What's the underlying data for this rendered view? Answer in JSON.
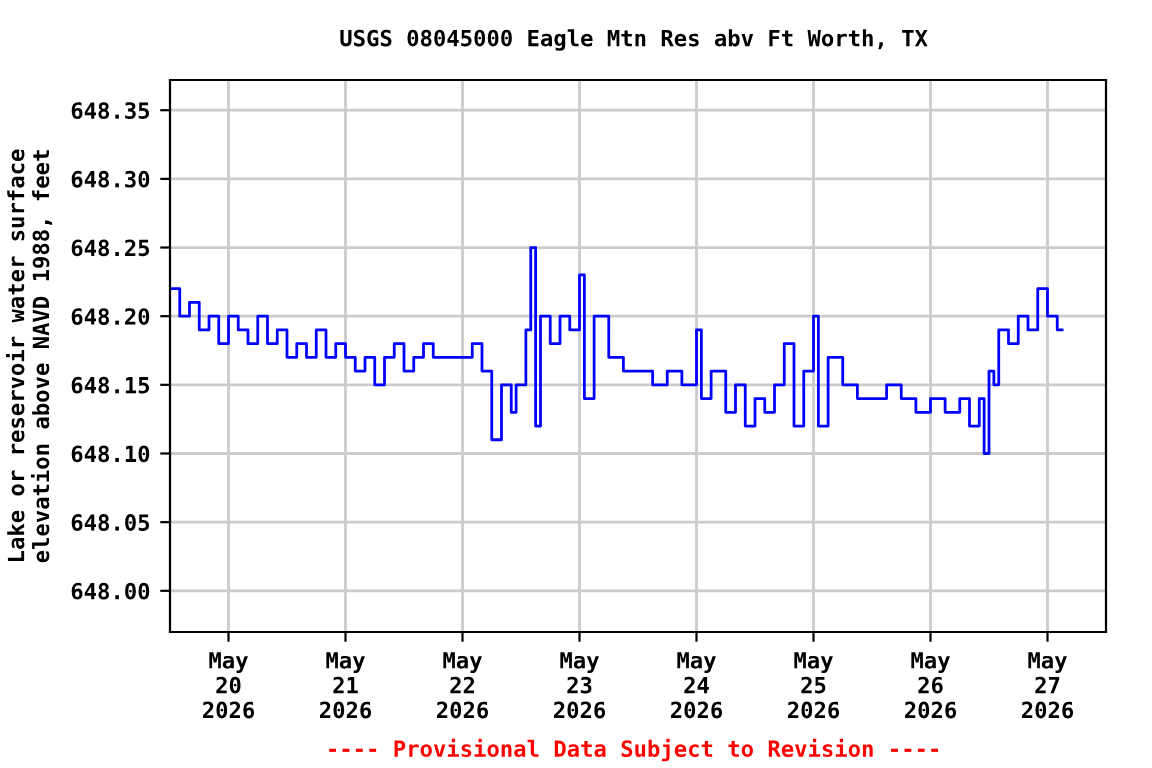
{
  "chart_data": {
    "type": "step",
    "title": "USGS 08045000 Eagle Mtn Res abv Ft Worth, TX",
    "ylabel": "Lake or reservoir water surface\nelevation above NAVD 1988, feet",
    "annotations": [
      "---- Provisional Data Subject to Revision ----"
    ],
    "x": [
      "2026-05-19T12:00",
      "2026-05-19T14:00",
      "2026-05-19T16:00",
      "2026-05-19T18:00",
      "2026-05-19T20:00",
      "2026-05-19T22:00",
      "2026-05-20T00:00",
      "2026-05-20T02:00",
      "2026-05-20T04:00",
      "2026-05-20T06:00",
      "2026-05-20T08:00",
      "2026-05-20T10:00",
      "2026-05-20T12:00",
      "2026-05-20T14:00",
      "2026-05-20T16:00",
      "2026-05-20T18:00",
      "2026-05-20T20:00",
      "2026-05-20T22:00",
      "2026-05-21T00:00",
      "2026-05-21T02:00",
      "2026-05-21T04:00",
      "2026-05-21T06:00",
      "2026-05-21T08:00",
      "2026-05-21T10:00",
      "2026-05-21T12:00",
      "2026-05-21T14:00",
      "2026-05-21T16:00",
      "2026-05-21T18:00",
      "2026-05-21T20:00",
      "2026-05-21T22:00",
      "2026-05-22T00:00",
      "2026-05-22T02:00",
      "2026-05-22T04:00",
      "2026-05-22T06:00",
      "2026-05-22T08:00",
      "2026-05-22T10:00",
      "2026-05-22T11:00",
      "2026-05-22T12:00",
      "2026-05-22T13:00",
      "2026-05-22T14:00",
      "2026-05-22T15:00",
      "2026-05-22T16:00",
      "2026-05-22T18:00",
      "2026-05-22T20:00",
      "2026-05-22T22:00",
      "2026-05-23T00:00",
      "2026-05-23T01:00",
      "2026-05-23T03:00",
      "2026-05-23T06:00",
      "2026-05-23T09:00",
      "2026-05-23T12:00",
      "2026-05-23T15:00",
      "2026-05-23T18:00",
      "2026-05-23T21:00",
      "2026-05-24T00:00",
      "2026-05-24T01:00",
      "2026-05-24T03:00",
      "2026-05-24T06:00",
      "2026-05-24T08:00",
      "2026-05-24T10:00",
      "2026-05-24T12:00",
      "2026-05-24T14:00",
      "2026-05-24T16:00",
      "2026-05-24T18:00",
      "2026-05-24T20:00",
      "2026-05-24T22:00",
      "2026-05-25T00:00",
      "2026-05-25T01:00",
      "2026-05-25T03:00",
      "2026-05-25T06:00",
      "2026-05-25T09:00",
      "2026-05-25T12:00",
      "2026-05-25T15:00",
      "2026-05-25T18:00",
      "2026-05-25T21:00",
      "2026-05-26T00:00",
      "2026-05-26T03:00",
      "2026-05-26T06:00",
      "2026-05-26T08:00",
      "2026-05-26T10:00",
      "2026-05-26T11:00",
      "2026-05-26T12:00",
      "2026-05-26T13:00",
      "2026-05-26T14:00",
      "2026-05-26T16:00",
      "2026-05-26T18:00",
      "2026-05-26T20:00",
      "2026-05-26T22:00",
      "2026-05-27T00:00",
      "2026-05-27T02:00",
      "2026-05-27T03:00"
    ],
    "series": [
      {
        "color": "#0000ff",
        "values": [
          648.22,
          648.2,
          648.21,
          648.19,
          648.2,
          648.18,
          648.2,
          648.19,
          648.18,
          648.2,
          648.18,
          648.19,
          648.17,
          648.18,
          648.17,
          648.19,
          648.17,
          648.18,
          648.17,
          648.16,
          648.17,
          648.15,
          648.17,
          648.18,
          648.16,
          648.17,
          648.18,
          648.17,
          648.17,
          648.17,
          648.17,
          648.18,
          648.16,
          648.11,
          648.15,
          648.13,
          648.15,
          648.15,
          648.19,
          648.25,
          648.12,
          648.2,
          648.18,
          648.2,
          648.19,
          648.23,
          648.14,
          648.2,
          648.17,
          648.16,
          648.16,
          648.15,
          648.16,
          648.15,
          648.19,
          648.14,
          648.16,
          648.13,
          648.15,
          648.12,
          648.14,
          648.13,
          648.15,
          648.18,
          648.12,
          648.16,
          648.2,
          648.12,
          648.17,
          648.15,
          648.14,
          648.14,
          648.15,
          648.14,
          648.13,
          648.14,
          648.13,
          648.14,
          648.12,
          648.14,
          648.1,
          648.16,
          648.15,
          648.19,
          648.18,
          648.2,
          648.19,
          648.22,
          648.2,
          648.19,
          648.19
        ]
      }
    ],
    "xlim": [
      "2026-05-19T12:00",
      "2026-05-27T12:00"
    ],
    "xticks": [
      {
        "value": "2026-05-20",
        "label": "May\n20\n2026"
      },
      {
        "value": "2026-05-21",
        "label": "May\n21\n2026"
      },
      {
        "value": "2026-05-22",
        "label": "May\n22\n2026"
      },
      {
        "value": "2026-05-23",
        "label": "May\n23\n2026"
      },
      {
        "value": "2026-05-24",
        "label": "May\n24\n2026"
      },
      {
        "value": "2026-05-25",
        "label": "May\n25\n2026"
      },
      {
        "value": "2026-05-26",
        "label": "May\n26\n2026"
      },
      {
        "value": "2026-05-27",
        "label": "May\n27\n2026"
      }
    ],
    "ylim": [
      647.97,
      648.372
    ],
    "yticks": [
      {
        "value": 648.0,
        "label": "648.00"
      },
      {
        "value": 648.05,
        "label": "648.05"
      },
      {
        "value": 648.1,
        "label": "648.10"
      },
      {
        "value": 648.15,
        "label": "648.15"
      },
      {
        "value": 648.2,
        "label": "648.20"
      },
      {
        "value": 648.25,
        "label": "648.25"
      },
      {
        "value": 648.3,
        "label": "648.30"
      },
      {
        "value": 648.35,
        "label": "648.35"
      }
    ],
    "grid": true
  }
}
